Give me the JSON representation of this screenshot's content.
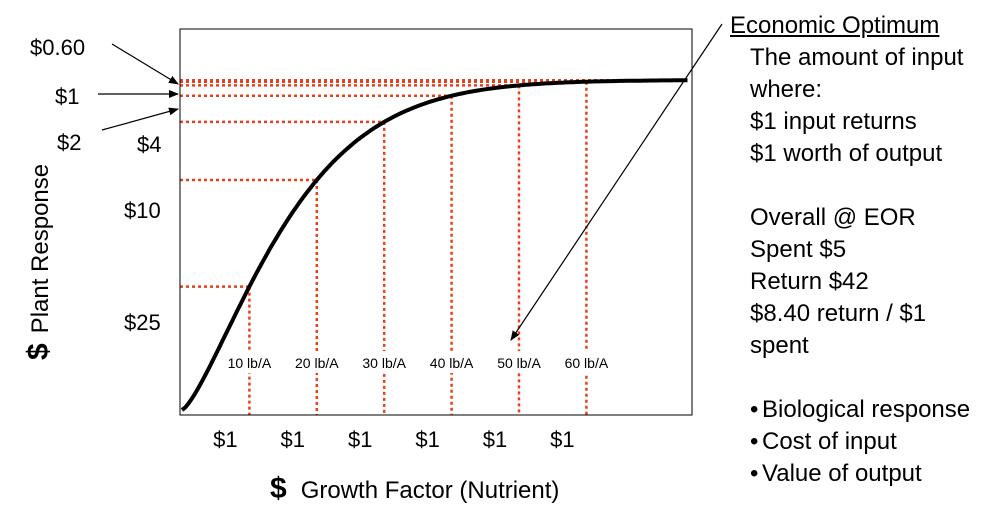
{
  "chart_data": {
    "type": "line",
    "x_axis_label": "Growth Factor (Nutrient)",
    "x_axis_symbol": "$",
    "y_axis_label": "Plant Response",
    "y_axis_symbol": "$",
    "rates": [
      "10 lb/A",
      "20 lb/A",
      "30 lb/A",
      "40 lb/A",
      "50 lb/A",
      "60 lb/A"
    ],
    "rate_lb_per_acre": [
      10,
      20,
      30,
      40,
      50,
      60
    ],
    "input_costs": [
      "$1",
      "$1",
      "$1",
      "$1",
      "$1",
      "$1"
    ],
    "response_labels": [
      "$0.60",
      "$1",
      "$2",
      "$4",
      "$10",
      "$25"
    ],
    "relative_response": [
      0.38,
      0.63,
      0.77,
      0.85,
      0.88,
      0.9
    ],
    "economic_optimum_rate": 50
  },
  "annotation": {
    "title": "Economic Optimum",
    "lines": [
      "The amount of input",
      "where:",
      "$1 input returns",
      "$1 worth of output"
    ],
    "overall": [
      "Overall @ EOR",
      "Spent $5",
      "Return $42",
      "$8.40 return / $1",
      "spent"
    ],
    "bullets": [
      "Biological response",
      "Cost of input",
      "Value of output"
    ]
  },
  "colors": {
    "curve": "#000000",
    "guide": "#e8401c",
    "frame": "#000000"
  }
}
